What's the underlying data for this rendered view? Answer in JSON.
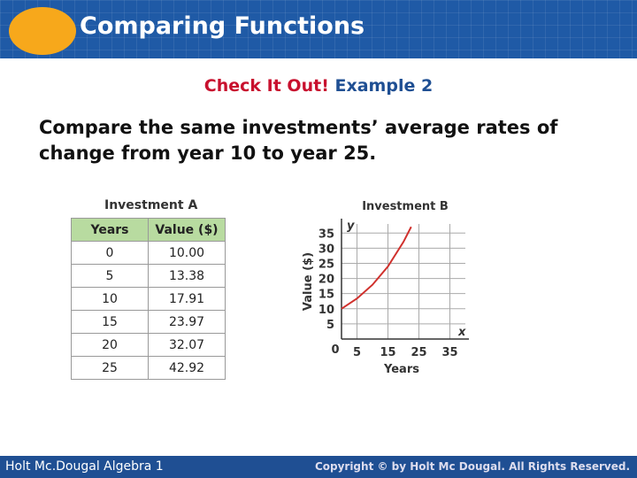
{
  "header": {
    "title": "Comparing Functions"
  },
  "subtitle": {
    "label": "Check It Out!",
    "example": "Example 2"
  },
  "body": "Compare the same investments’ average rates of change from year 10 to year 25.",
  "table": {
    "title": "Investment A",
    "columns": [
      "Years",
      "Value ($)"
    ],
    "rows": [
      [
        "0",
        "10.00"
      ],
      [
        "5",
        "13.38"
      ],
      [
        "10",
        "17.91"
      ],
      [
        "15",
        "23.97"
      ],
      [
        "20",
        "32.07"
      ],
      [
        "25",
        "42.92"
      ]
    ]
  },
  "chart_data": {
    "type": "line",
    "title": "Investment B",
    "x_label": "Years",
    "y_label": "Value ($)",
    "x_axis_letter": "x",
    "y_axis_letter": "y",
    "origin_label": "0",
    "x": [
      0,
      5,
      10,
      15,
      20,
      22.5
    ],
    "series": [
      {
        "color": "#d0312d",
        "values": [
          10,
          13.38,
          17.91,
          23.97,
          32.07,
          37.05
        ]
      }
    ],
    "xlim": [
      0,
      40
    ],
    "ylim": [
      0,
      38
    ],
    "xticks": [
      5,
      15,
      25,
      35
    ],
    "yticks": [
      5,
      10,
      15,
      20,
      25,
      30,
      35
    ],
    "grid": true
  },
  "footer": {
    "left": "Holt Mc.Dougal Algebra 1",
    "right": "Copyright © by Holt Mc Dougal. All Rights Reserved."
  }
}
